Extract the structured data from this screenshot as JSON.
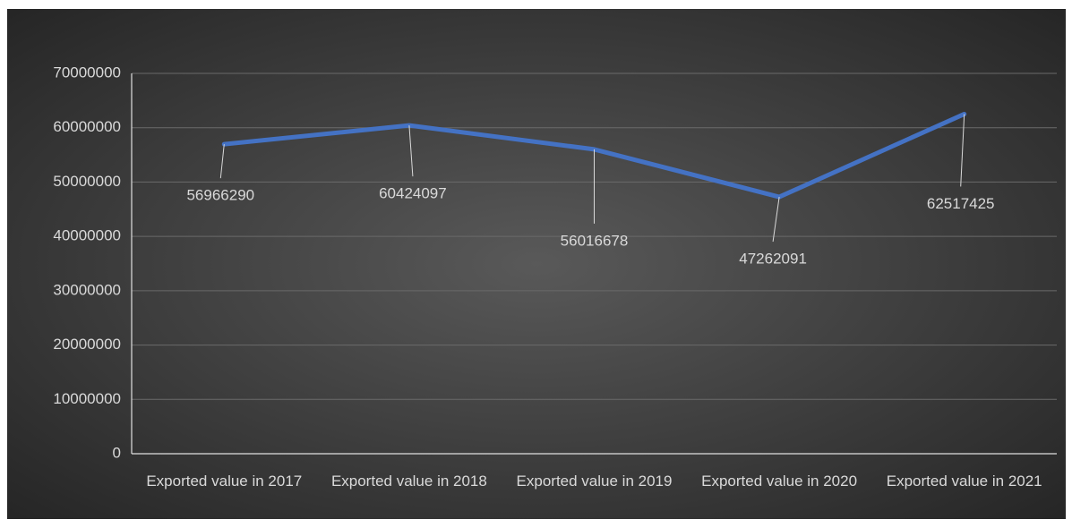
{
  "chart_data": {
    "type": "line",
    "categories": [
      "Exported value in 2017",
      "Exported value in 2018",
      "Exported value in 2019",
      "Exported value in 2020",
      "Exported value in 2021"
    ],
    "series": [
      {
        "name": "Exported value",
        "color": "#4472c4",
        "values": [
          56966290,
          60424097,
          56016678,
          47262091,
          62517425
        ]
      }
    ],
    "ylim": [
      0,
      70000000
    ],
    "yticks": [
      0,
      10000000,
      20000000,
      30000000,
      40000000,
      50000000,
      60000000,
      70000000
    ],
    "grid": true
  }
}
